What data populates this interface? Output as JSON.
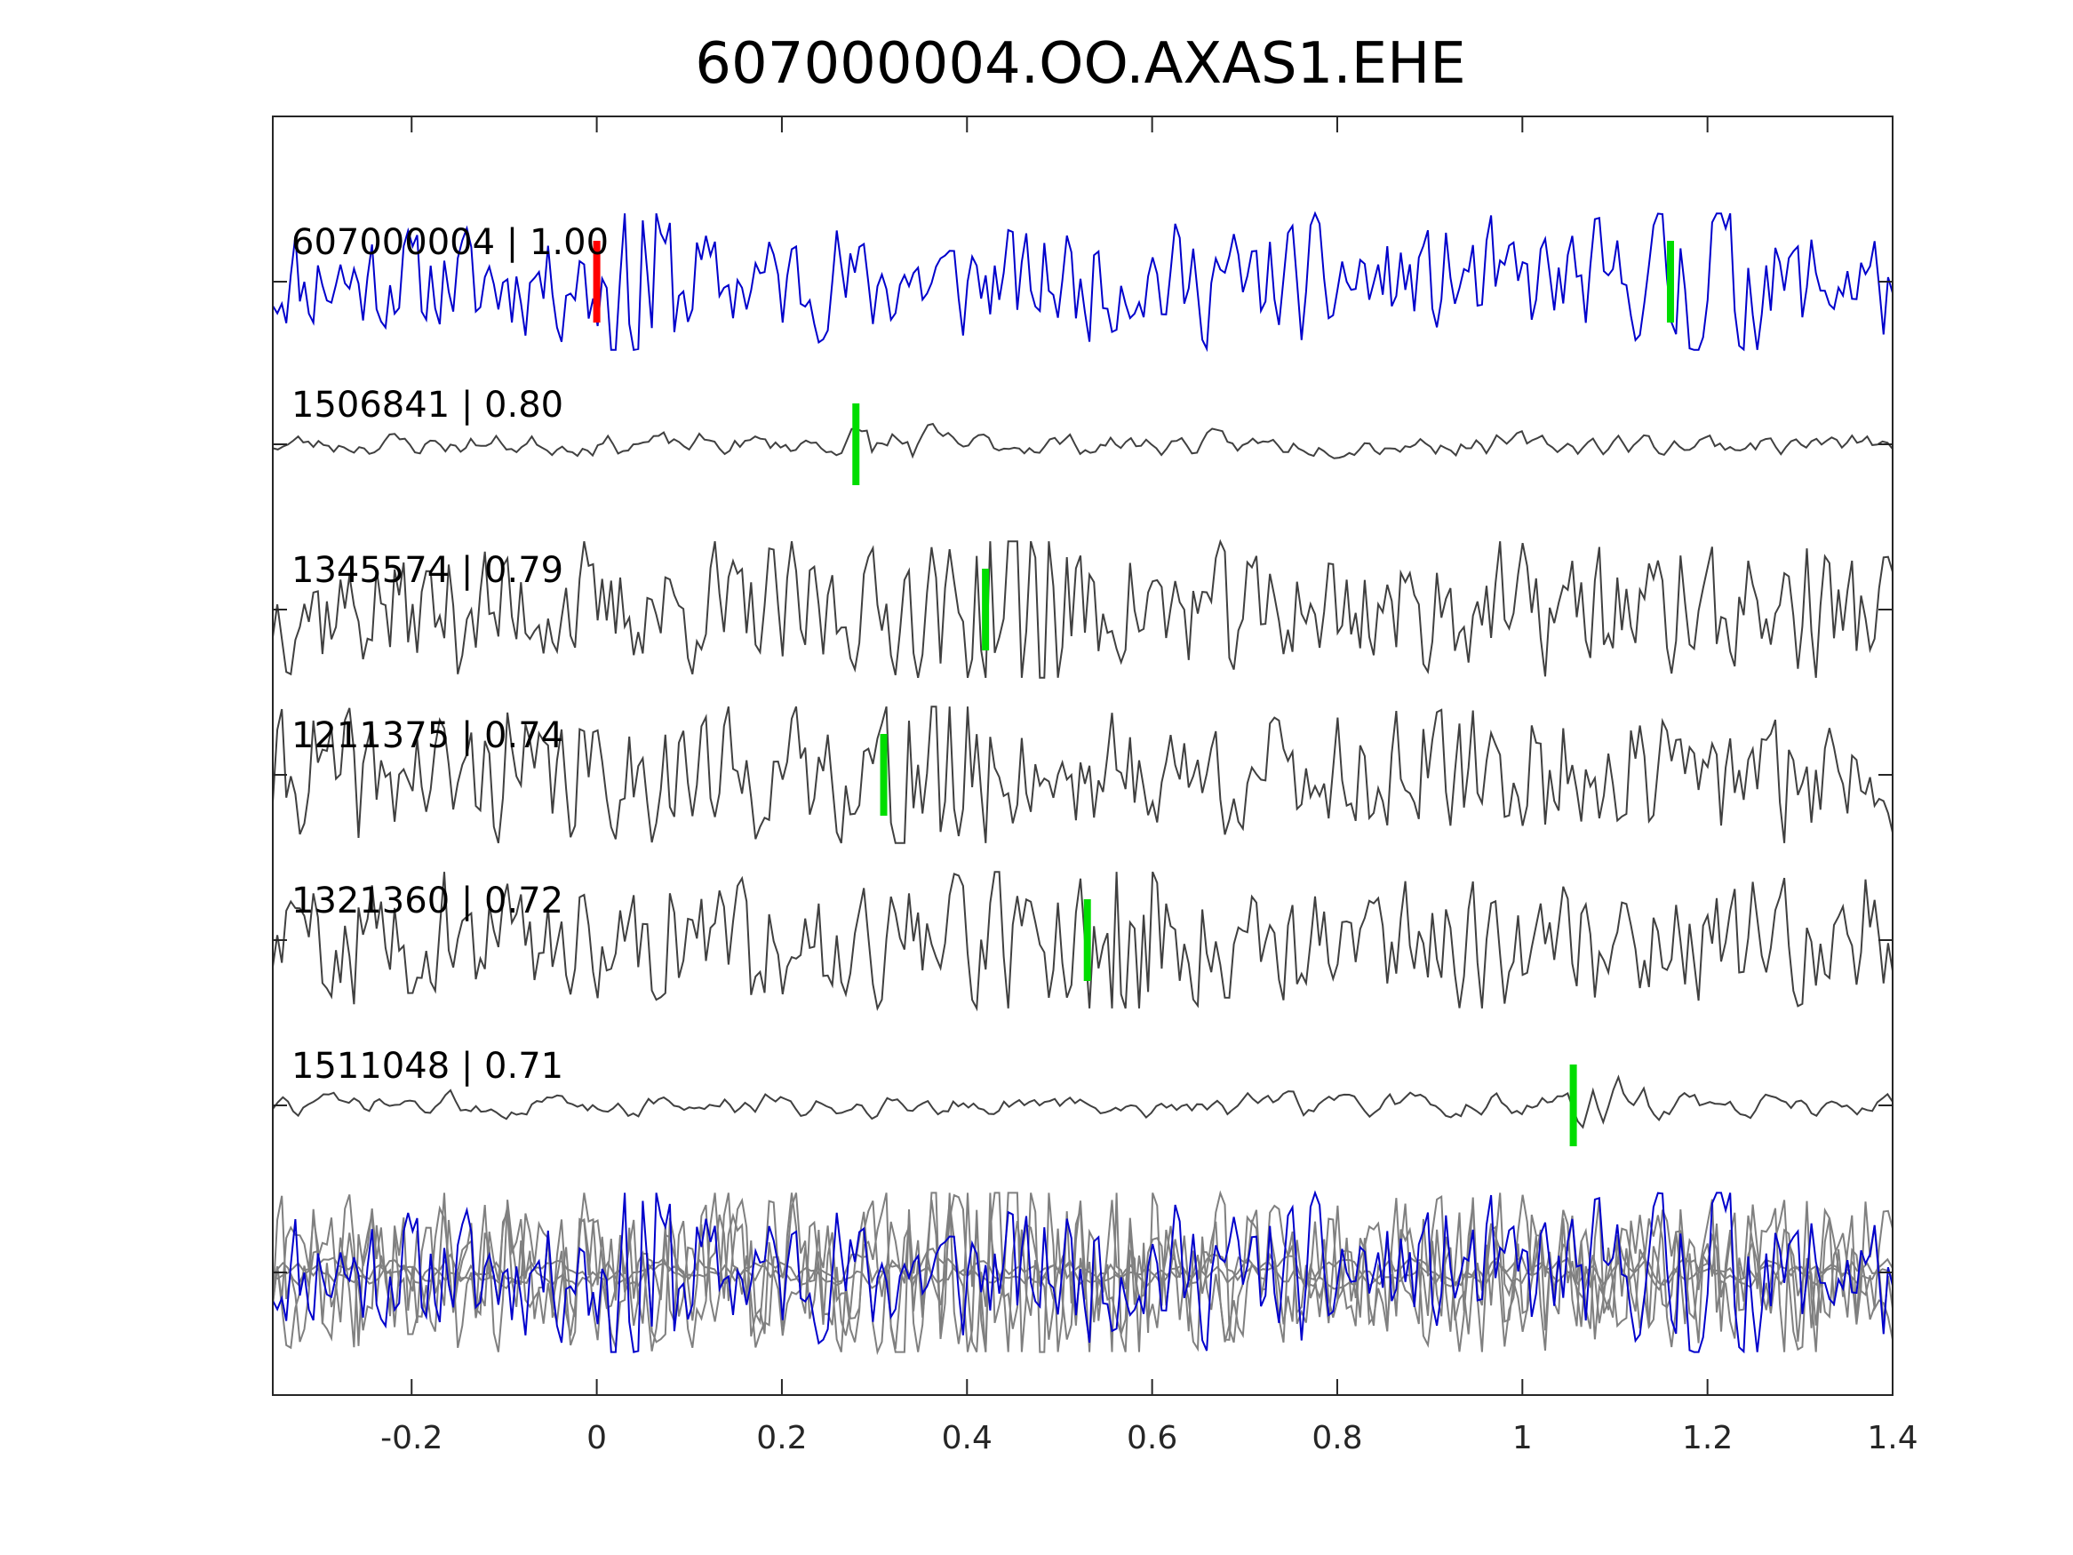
{
  "chart_data": {
    "type": "line",
    "title": "607000004.OO.AXAS1.EHE",
    "xlabel": "",
    "ylabel": "",
    "xlim": [
      -0.35,
      1.4
    ],
    "xticks": [
      -0.2,
      0,
      0.2,
      0.4,
      0.6,
      0.8,
      1,
      1.2,
      1.4
    ],
    "xtick_labels": [
      "-0.2",
      "0",
      "0.2",
      "0.4",
      "0.6",
      "0.8",
      "1",
      "1.2",
      "1.4"
    ],
    "grid": false,
    "legend": "none",
    "template_color": "#0000cc",
    "trace_color": "#404040",
    "overlay_color": "#808080",
    "pick_colors": {
      "template": "#ff0000",
      "match": "#00dd00"
    },
    "series": [
      {
        "label": "607000004 | 1.00",
        "pick_times": [
          0.0,
          1.16
        ],
        "amplitude": 0.9,
        "style": "template"
      },
      {
        "label": "1506841 | 0.80",
        "pick_times": [
          0.28
        ],
        "amplitude": 0.45,
        "style": "smooth"
      },
      {
        "label": "1345574 | 0.79",
        "pick_times": [
          0.42
        ],
        "amplitude": 0.9,
        "style": "noisy"
      },
      {
        "label": "1211375 | 0.74",
        "pick_times": [
          0.31
        ],
        "amplitude": 0.9,
        "style": "noisy"
      },
      {
        "label": "1321360 | 0.72",
        "pick_times": [
          0.53
        ],
        "amplitude": 0.9,
        "style": "noisy"
      },
      {
        "label": "1511048 | 0.71",
        "pick_times": [
          1.055
        ],
        "amplitude": 0.45,
        "style": "smooth"
      }
    ]
  }
}
